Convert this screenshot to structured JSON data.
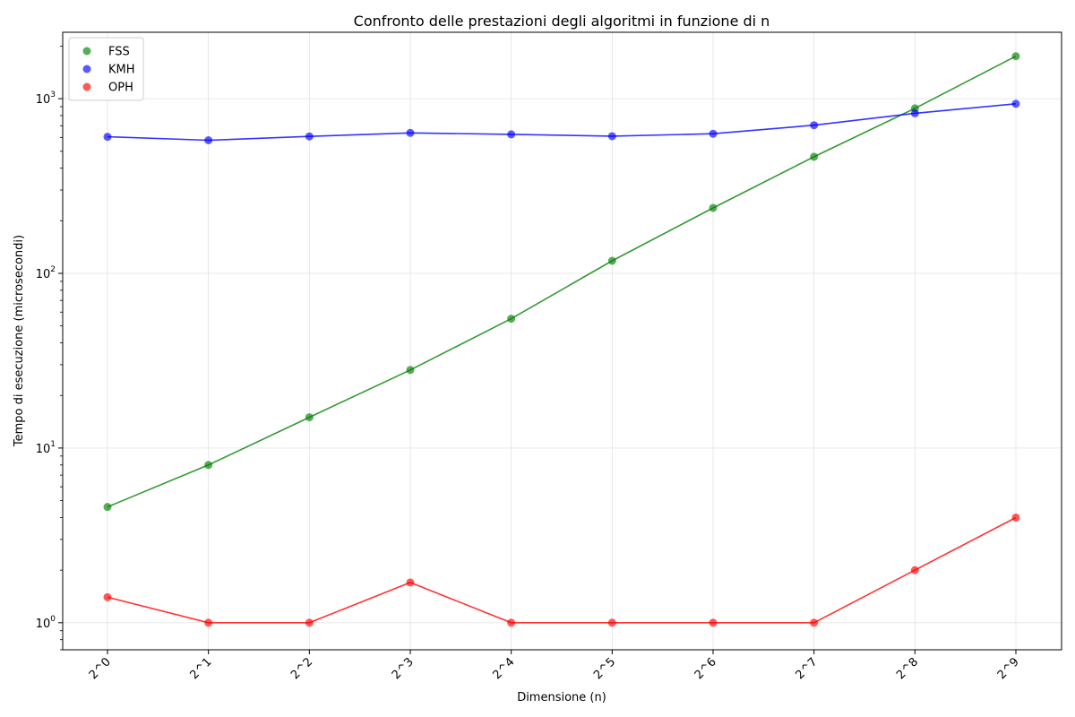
{
  "chart_data": {
    "type": "line",
    "title": "Confronto delle prestazioni degli algoritmi in funzione di n",
    "xlabel": "Dimensione (n)",
    "ylabel": "Tempo di esecuzione (microsecondi)",
    "categories": [
      "2^0",
      "2^1",
      "2^2",
      "2^3",
      "2^4",
      "2^5",
      "2^6",
      "2^7",
      "2^8",
      "2^9"
    ],
    "yscale": "log",
    "ylim": [
      0.7,
      2400
    ],
    "y_ticks": [
      {
        "base": "10",
        "exp": "0",
        "value": 1
      },
      {
        "base": "10",
        "exp": "1",
        "value": 10
      },
      {
        "base": "10",
        "exp": "2",
        "value": 100
      },
      {
        "base": "10",
        "exp": "3",
        "value": 1000
      }
    ],
    "grid": true,
    "legend_position": "top-left",
    "series": [
      {
        "name": "FSS",
        "color": "#008000",
        "values": [
          4.6,
          8,
          15,
          28,
          55,
          118,
          237,
          465,
          880,
          1750
        ]
      },
      {
        "name": "KMH",
        "color": "#0000ff",
        "values": [
          605,
          578,
          608,
          637,
          625,
          610,
          630,
          705,
          825,
          935
        ]
      },
      {
        "name": "OPH",
        "color": "#ff0000",
        "values": [
          1.4,
          1,
          1,
          1.7,
          1,
          1,
          1,
          1,
          2,
          4
        ]
      }
    ]
  }
}
